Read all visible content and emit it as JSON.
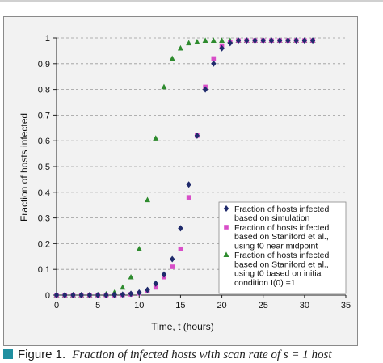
{
  "caption": {
    "label": "Figure 1.",
    "text": "Fraction of infected hosts with scan rate of s = 1 host"
  },
  "colors": {
    "simulation": "#1f2a6b",
    "midpoint": "#d84ec8",
    "initial": "#2e8b2e",
    "grid": "#9a9a9a",
    "panel": "#f2f2f2",
    "caption_square": "#1f8fa0"
  },
  "chart_data": {
    "type": "scatter",
    "xlabel": "Time, t (hours)",
    "ylabel": "Fraction of hosts infected",
    "xlim": [
      0,
      35
    ],
    "ylim": [
      0,
      1
    ],
    "xticks": [
      0,
      5,
      10,
      15,
      20,
      25,
      30,
      35
    ],
    "yticks": [
      0,
      0.1,
      0.2,
      0.3,
      0.4,
      0.5,
      0.6,
      0.7,
      0.8,
      0.9,
      1
    ],
    "grid": "horizontal dashed",
    "legend_position": "lower-right",
    "series": [
      {
        "name": "Fraction of hosts infected based on simulation",
        "legend_lines": [
          "Fraction of hosts infected",
          "based on simulation"
        ],
        "marker": "diamond",
        "points": [
          [
            0,
            0
          ],
          [
            1,
            0
          ],
          [
            2,
            0
          ],
          [
            3,
            0
          ],
          [
            4,
            0
          ],
          [
            5,
            0
          ],
          [
            6,
            0
          ],
          [
            7,
            0.001
          ],
          [
            8,
            0.002
          ],
          [
            9,
            0.005
          ],
          [
            10,
            0.01
          ],
          [
            11,
            0.02
          ],
          [
            12,
            0.045
          ],
          [
            13,
            0.08
          ],
          [
            14,
            0.14
          ],
          [
            15,
            0.26
          ],
          [
            16,
            0.43
          ],
          [
            17,
            0.62
          ],
          [
            18,
            0.8
          ],
          [
            19,
            0.9
          ],
          [
            20,
            0.96
          ],
          [
            21,
            0.98
          ],
          [
            22,
            0.99
          ],
          [
            23,
            0.99
          ],
          [
            24,
            0.99
          ],
          [
            25,
            0.99
          ],
          [
            26,
            0.99
          ],
          [
            27,
            0.99
          ],
          [
            28,
            0.99
          ],
          [
            29,
            0.99
          ],
          [
            30,
            0.99
          ],
          [
            31,
            0.99
          ]
        ]
      },
      {
        "name": "Fraction of hosts infected based on Staniford et al., using t0 near midpoint",
        "legend_lines": [
          "Fraction of hosts infected",
          "based on Staniford et al.,",
          "using t0 near midpoint"
        ],
        "marker": "square",
        "points": [
          [
            0,
            0
          ],
          [
            1,
            0
          ],
          [
            2,
            0
          ],
          [
            3,
            0
          ],
          [
            4,
            0
          ],
          [
            5,
            0
          ],
          [
            6,
            0
          ],
          [
            7,
            0
          ],
          [
            8,
            0.001
          ],
          [
            9,
            0.003
          ],
          [
            10,
            0.007
          ],
          [
            11,
            0.015
          ],
          [
            12,
            0.03
          ],
          [
            13,
            0.07
          ],
          [
            14,
            0.11
          ],
          [
            15,
            0.18
          ],
          [
            16,
            0.38
          ],
          [
            17,
            0.62
          ],
          [
            18,
            0.81
          ],
          [
            19,
            0.92
          ],
          [
            20,
            0.97
          ],
          [
            21,
            0.985
          ],
          [
            22,
            0.99
          ],
          [
            23,
            0.99
          ],
          [
            24,
            0.99
          ],
          [
            25,
            0.99
          ],
          [
            26,
            0.99
          ],
          [
            27,
            0.99
          ],
          [
            28,
            0.99
          ],
          [
            29,
            0.99
          ],
          [
            30,
            0.99
          ],
          [
            31,
            0.99
          ]
        ]
      },
      {
        "name": "Fraction of hosts infected based on Staniford et al., using t0 based on initial condition I(0) = 1",
        "legend_lines": [
          "Fraction of hosts infected",
          "based on Staniford et al.,",
          "using t0 based on initial",
          "condition I(0) =1"
        ],
        "marker": "triangle",
        "points": [
          [
            0,
            0
          ],
          [
            1,
            0
          ],
          [
            2,
            0
          ],
          [
            3,
            0
          ],
          [
            4,
            0
          ],
          [
            5,
            0.001
          ],
          [
            6,
            0.004
          ],
          [
            7,
            0.01
          ],
          [
            8,
            0.03
          ],
          [
            9,
            0.07
          ],
          [
            10,
            0.18
          ],
          [
            11,
            0.37
          ],
          [
            12,
            0.61
          ],
          [
            13,
            0.81
          ],
          [
            14,
            0.92
          ],
          [
            15,
            0.96
          ],
          [
            16,
            0.98
          ],
          [
            17,
            0.985
          ],
          [
            18,
            0.99
          ],
          [
            19,
            0.99
          ],
          [
            20,
            0.99
          ],
          [
            21,
            0.99
          ],
          [
            22,
            0.99
          ],
          [
            23,
            0.99
          ],
          [
            24,
            0.99
          ],
          [
            25,
            0.99
          ],
          [
            26,
            0.99
          ],
          [
            27,
            0.99
          ],
          [
            28,
            0.99
          ],
          [
            29,
            0.99
          ],
          [
            30,
            0.99
          ],
          [
            31,
            0.99
          ]
        ]
      }
    ]
  }
}
